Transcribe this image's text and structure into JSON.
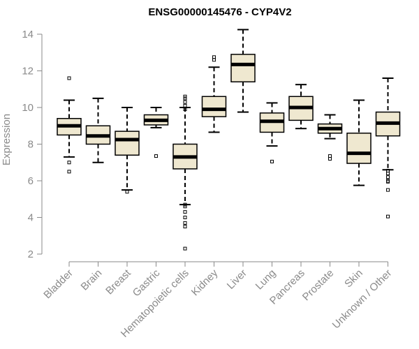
{
  "chart_data": {
    "type": "boxplot",
    "title": "ENSG00000145476 - CYP4V2",
    "xlabel": "",
    "ylabel": "Expression",
    "ylim": [
      2,
      14
    ],
    "yticks": [
      2,
      4,
      6,
      8,
      10,
      12,
      14
    ],
    "box_fill": "#efe8d0",
    "categories": [
      "Bladder",
      "Brain",
      "Breast",
      "Gastric",
      "Hematopoietic cells",
      "Kidney",
      "Liver",
      "Lung",
      "Pancreas",
      "Prostate",
      "Skin",
      "Unknown / Other"
    ],
    "series": [
      {
        "name": "Bladder",
        "whisker_low": 7.3,
        "q1": 8.5,
        "median": 9.0,
        "q3": 9.4,
        "whisker_high": 10.4,
        "outliers": [
          11.6,
          7.0,
          6.5
        ]
      },
      {
        "name": "Brain",
        "whisker_low": 7.0,
        "q1": 8.0,
        "median": 8.45,
        "q3": 9.0,
        "whisker_high": 10.5,
        "outliers": []
      },
      {
        "name": "Breast",
        "whisker_low": 5.5,
        "q1": 7.4,
        "median": 8.25,
        "q3": 8.7,
        "whisker_high": 10.0,
        "outliers": [
          5.4
        ]
      },
      {
        "name": "Gastric",
        "whisker_low": 8.9,
        "q1": 9.05,
        "median": 9.3,
        "q3": 9.6,
        "whisker_high": 10.0,
        "outliers": [
          7.35
        ]
      },
      {
        "name": "Hematopoietic cells",
        "whisker_low": 4.7,
        "q1": 6.65,
        "median": 7.3,
        "q3": 8.0,
        "whisker_high": 10.0,
        "outliers": [
          10.6,
          10.5,
          10.3,
          10.1,
          9.9,
          4.7,
          4.6,
          4.3,
          4.0,
          3.7,
          3.5,
          2.3
        ]
      },
      {
        "name": "Kidney",
        "whisker_low": 8.65,
        "q1": 9.5,
        "median": 9.9,
        "q3": 10.6,
        "whisker_high": 12.2,
        "outliers": [
          12.75,
          12.6
        ]
      },
      {
        "name": "Liver",
        "whisker_low": 9.75,
        "q1": 11.4,
        "median": 12.35,
        "q3": 12.9,
        "whisker_high": 14.25,
        "outliers": []
      },
      {
        "name": "Lung",
        "whisker_low": 7.9,
        "q1": 8.65,
        "median": 9.25,
        "q3": 9.7,
        "whisker_high": 10.25,
        "outliers": [
          7.05
        ]
      },
      {
        "name": "Pancreas",
        "whisker_low": 8.85,
        "q1": 9.3,
        "median": 10.0,
        "q3": 10.6,
        "whisker_high": 11.25,
        "outliers": []
      },
      {
        "name": "Prostate",
        "whisker_low": 8.3,
        "q1": 8.6,
        "median": 8.85,
        "q3": 9.1,
        "whisker_high": 9.6,
        "outliers": [
          7.35,
          7.2
        ]
      },
      {
        "name": "Skin",
        "whisker_low": 5.75,
        "q1": 6.95,
        "median": 7.5,
        "q3": 8.6,
        "whisker_high": 10.4,
        "outliers": []
      },
      {
        "name": "Unknown / Other",
        "whisker_low": 6.6,
        "q1": 8.45,
        "median": 9.15,
        "q3": 9.75,
        "whisker_high": 11.6,
        "outliers": [
          6.55,
          6.4,
          6.2,
          6.0,
          5.95,
          5.5,
          4.05
        ]
      }
    ]
  }
}
